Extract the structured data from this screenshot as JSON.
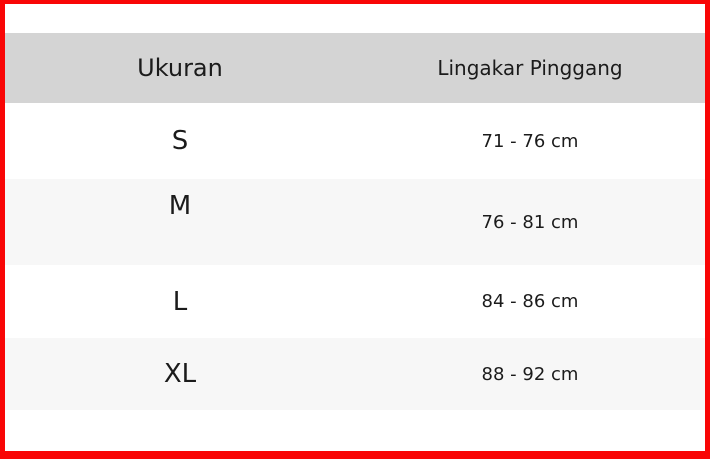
{
  "chart_data": {
    "type": "table",
    "title": "",
    "columns": [
      "Ukuran",
      "Lingakar Pinggang"
    ],
    "rows": [
      [
        "S",
        "71 - 76 cm"
      ],
      [
        "M",
        "76 - 81 cm"
      ],
      [
        "L",
        "84 - 86 cm"
      ],
      [
        "XL",
        "88 - 92 cm"
      ]
    ]
  },
  "table": {
    "header": {
      "size_label": "Ukuran",
      "measure_label": "Lingakar Pinggang"
    },
    "rows": [
      {
        "size": "S",
        "range": "71 - 76 cm"
      },
      {
        "size": "M",
        "range": "76 - 81 cm"
      },
      {
        "size": "L",
        "range": "84 - 86 cm"
      },
      {
        "size": "XL",
        "range": "88 - 92 cm"
      }
    ]
  },
  "colors": {
    "border": "#f90606",
    "header_bg": "#d4d4d4",
    "row_alt_bg": "#f7f7f7",
    "text": "#1b1b1b"
  }
}
